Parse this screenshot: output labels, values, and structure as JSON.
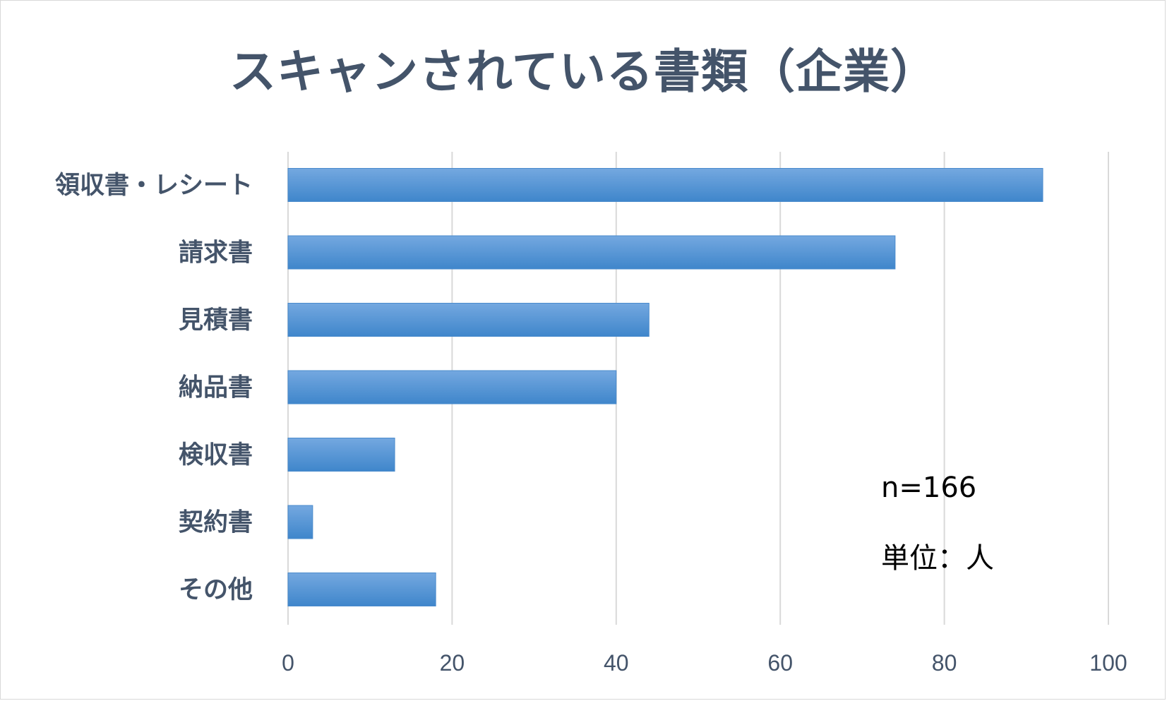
{
  "colors": {
    "bar_top": "#74a8e0",
    "bar_bottom": "#3f86cb",
    "bar_stroke": "#4a8bcc",
    "grid": "#d9d9d9",
    "text": "#44546a"
  },
  "notes": {
    "sample": "n=166",
    "unit": "単位：人"
  },
  "chart_data": {
    "type": "bar",
    "orientation": "horizontal",
    "title": "スキャンされている書類（企業）",
    "categories": [
      "領収書・レシート",
      "請求書",
      "見積書",
      "納品書",
      "検収書",
      "契約書",
      "その他"
    ],
    "values": [
      92,
      74,
      44,
      40,
      13,
      3,
      18
    ],
    "xlim": [
      0,
      100
    ],
    "xticks": [
      0,
      20,
      40,
      60,
      80,
      100
    ],
    "xlabel": "",
    "ylabel": "",
    "grid": true,
    "legend": "none"
  }
}
